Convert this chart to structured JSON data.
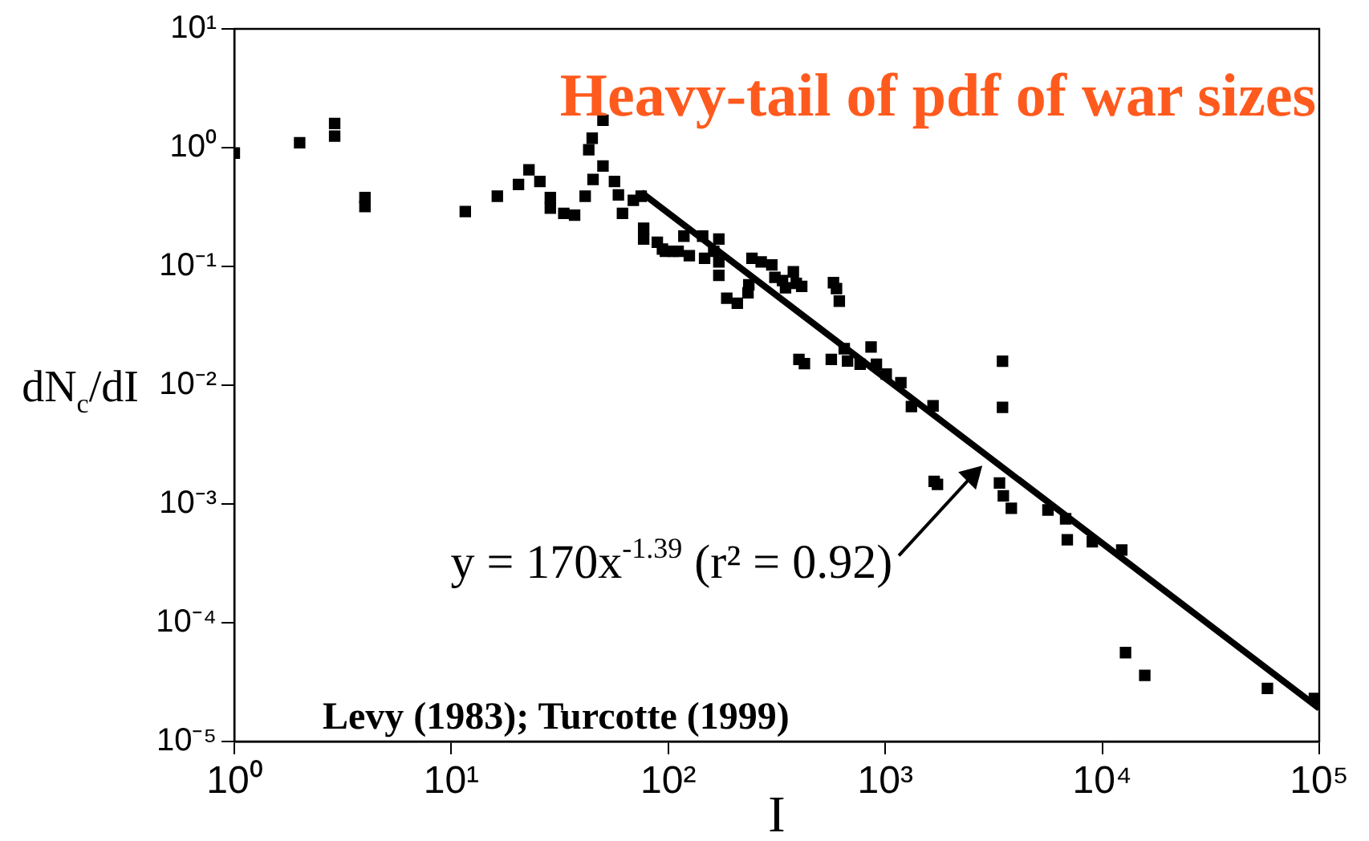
{
  "chart_data": {
    "type": "scatter",
    "title": "Heavy-tail of pdf of war sizes",
    "xlabel": "I",
    "ylabel": "dN$_{c}$/dI",
    "log": "xy",
    "grid": false,
    "legend": false,
    "xlim": [
      1,
      100000
    ],
    "ylim": [
      1e-05,
      10
    ],
    "xticks": [
      {
        "value": 1,
        "label": "10⁰"
      },
      {
        "value": 10,
        "label": "10¹"
      },
      {
        "value": 100,
        "label": "10²"
      },
      {
        "value": 1000,
        "label": "10³"
      },
      {
        "value": 10000,
        "label": "10⁴"
      },
      {
        "value": 100000,
        "label": "10⁵"
      }
    ],
    "yticks": [
      {
        "value": 1e-05,
        "label": "10⁻⁵"
      },
      {
        "value": 0.0001,
        "label": "10⁻⁴"
      },
      {
        "value": 0.001,
        "label": "10⁻³"
      },
      {
        "value": 0.01,
        "label": "10⁻²"
      },
      {
        "value": 0.1,
        "label": "10⁻¹"
      },
      {
        "value": 1,
        "label": "10⁰"
      },
      {
        "value": 10,
        "label": "10¹"
      }
    ],
    "annotations": [
      {
        "text": "y = 170x$^{-1.39}$ (r² = 0.92)",
        "x": 2800,
        "y": 0.0021
      },
      "Levy (1983); Turcotte (1999)"
    ],
    "series": [
      {
        "marker": "square",
        "color": "#000000",
        "x": [
          1,
          2,
          2.9,
          2.9,
          4,
          4,
          11.6,
          16.3,
          20.4,
          22.8,
          25.6,
          28.6,
          28.6,
          33,
          37,
          41.4,
          43,
          44.6,
          50,
          45,
          50,
          56.5,
          58.9,
          61.5
        ],
        "values": [
          0.9,
          1.1,
          1.25,
          1.6,
          0.38,
          0.32,
          0.29,
          0.39,
          0.49,
          0.65,
          0.52,
          0.38,
          0.31,
          0.28,
          0.27,
          0.39,
          0.96,
          1.2,
          1.7,
          0.54,
          0.7,
          0.52,
          0.4,
          0.28
        ]
      },
      {
        "marker": "square",
        "color": "#000000",
        "x": [
          69,
          75,
          77,
          77,
          89,
          94,
          97,
          105,
          111,
          118,
          125,
          144,
          147,
          162,
          171,
          171,
          171,
          186,
          208,
          233,
          235,
          243,
          268,
          300,
          310,
          336,
          347,
          377,
          389,
          412,
          577,
          596,
          614,
          400,
          424,
          564,
          647,
          670,
          766,
          860,
          910,
          1010,
          1180,
          1320,
          1660,
          1680,
          1740,
          3470,
          3470,
          3360,
          3500,
          3810,
          5620,
          6780,
          6900,
          9000,
          12300,
          12800,
          15700,
          57700,
          95000
        ],
        "values": [
          0.36,
          0.39,
          0.21,
          0.17,
          0.16,
          0.14,
          0.134,
          0.134,
          0.134,
          0.18,
          0.123,
          0.18,
          0.117,
          0.134,
          0.17,
          0.109,
          0.084,
          0.054,
          0.049,
          0.06,
          0.07,
          0.117,
          0.109,
          0.103,
          0.081,
          0.076,
          0.066,
          0.09,
          0.072,
          0.068,
          0.073,
          0.065,
          0.051,
          0.0165,
          0.0152,
          0.0165,
          0.0203,
          0.016,
          0.015,
          0.021,
          0.015,
          0.0124,
          0.0105,
          0.0066,
          0.0067,
          0.00155,
          0.00146,
          0.0159,
          0.0065,
          0.0015,
          0.00117,
          0.00092,
          0.00089,
          0.00075,
          0.0005,
          0.00048,
          0.00041,
          5.6e-05,
          3.6e-05,
          2.8e-05,
          2.3e-05
        ]
      },
      {
        "type": "line",
        "marker": "none",
        "line_style": "solid",
        "color": "#000000",
        "x": [
          75,
          100000
        ],
        "values": [
          0.42,
          1.9e-05
        ]
      }
    ]
  }
}
